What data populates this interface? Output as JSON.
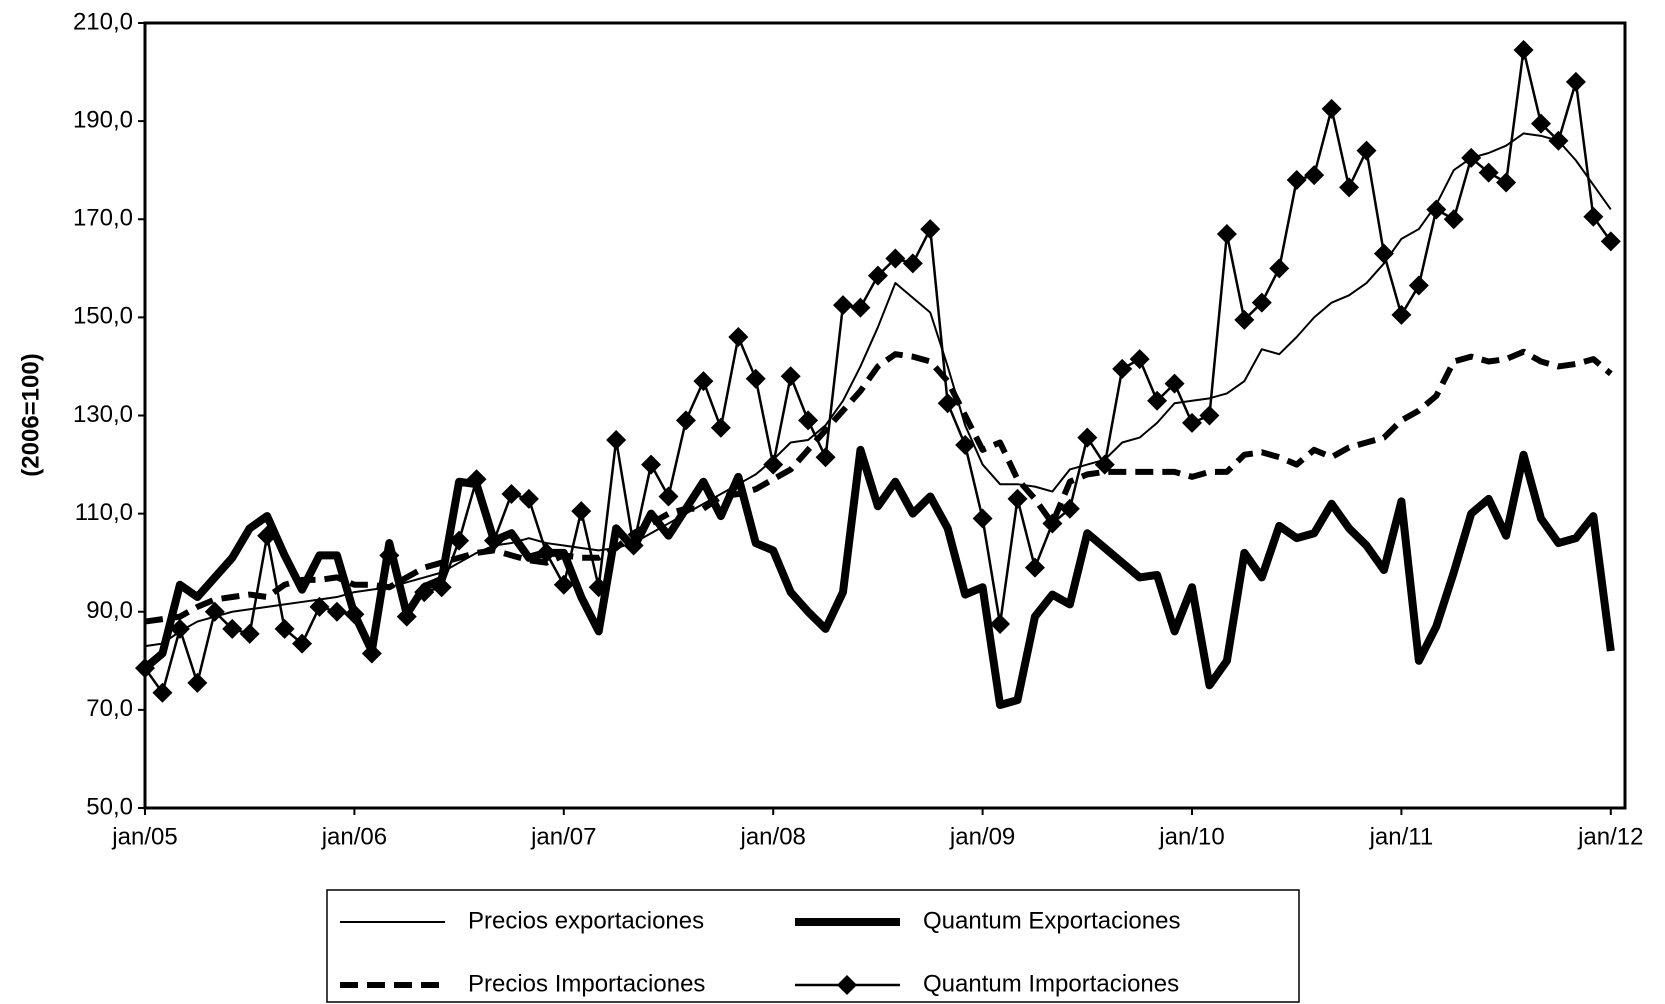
{
  "chart_data": {
    "type": "line",
    "y_label": "(2006=100)",
    "categories": [
      "jan/05",
      null,
      null,
      null,
      null,
      null,
      null,
      null,
      null,
      null,
      null,
      null,
      "jan/06",
      null,
      null,
      null,
      null,
      null,
      null,
      null,
      null,
      null,
      null,
      null,
      "jan/07",
      null,
      null,
      null,
      null,
      null,
      null,
      null,
      null,
      null,
      null,
      null,
      "jan/08",
      null,
      null,
      null,
      null,
      null,
      null,
      null,
      null,
      null,
      null,
      null,
      "jan/09",
      null,
      null,
      null,
      null,
      null,
      null,
      null,
      null,
      null,
      null,
      null,
      "jan/10",
      null,
      null,
      null,
      null,
      null,
      null,
      null,
      null,
      null,
      null,
      null,
      "jan/11",
      null,
      null,
      null,
      null,
      null,
      null,
      null,
      null,
      null,
      null,
      null,
      "jan/12"
    ],
    "ylim": [
      50,
      210
    ],
    "yticks": [
      {
        "value": 50,
        "label": "50,0"
      },
      {
        "value": 70,
        "label": "70,0"
      },
      {
        "value": 90,
        "label": "90,0"
      },
      {
        "value": 110,
        "label": "110,0"
      },
      {
        "value": 130,
        "label": "130,0"
      },
      {
        "value": 150,
        "label": "150,0"
      },
      {
        "value": 170,
        "label": "170,0"
      },
      {
        "value": 190,
        "label": "190,0"
      },
      {
        "value": 210,
        "label": "210,0"
      }
    ],
    "series": [
      {
        "name": "Precios exportaciones",
        "color": "#000000",
        "width": 2,
        "style": "solid",
        "values": [
          83,
          83.5,
          86,
          88,
          89,
          90,
          90.5,
          91,
          91.5,
          92,
          92.5,
          93,
          94,
          94.5,
          95,
          96,
          97,
          98,
          100,
          102,
          103.5,
          104,
          105,
          104,
          103.5,
          103,
          102.5,
          103,
          104,
          106,
          108,
          110,
          112,
          114,
          116,
          118,
          121,
          124.5,
          125,
          128,
          133,
          140,
          148,
          157,
          154,
          151,
          140,
          128,
          120,
          116,
          116,
          115.5,
          114.5,
          119,
          120,
          121,
          124.5,
          125.5,
          128.5,
          132.5,
          133,
          133.5,
          134.5,
          137,
          143.5,
          142.5,
          146,
          150,
          153,
          154.5,
          157,
          161,
          166,
          168,
          173,
          180,
          182.5,
          183.5,
          185,
          187.5,
          187,
          186,
          182,
          177,
          172
        ]
      },
      {
        "name": "Quantum Exportaciones",
        "color": "#000000",
        "width": 8,
        "style": "solid",
        "values": [
          78.5,
          81.5,
          95.5,
          93,
          97,
          101,
          107,
          109.5,
          101.5,
          94.5,
          101.5,
          101.5,
          89.5,
          82,
          104,
          89.5,
          95,
          96.5,
          116.5,
          116,
          104.5,
          106,
          101,
          102,
          102,
          93,
          86,
          107,
          103,
          110,
          105.5,
          111,
          116.5,
          109.5,
          117.5,
          104,
          102.5,
          94,
          90,
          86.5,
          94,
          123,
          111.5,
          116.5,
          110,
          113.5,
          107,
          93.5,
          95,
          71,
          72,
          89,
          93.5,
          91.5,
          106,
          103,
          100,
          97,
          97.5,
          86,
          95,
          75,
          80,
          102,
          97,
          107.5,
          105,
          106,
          112,
          107,
          103.5,
          98.5,
          112.5,
          80,
          87,
          98,
          110,
          113,
          105.5,
          122,
          109,
          104,
          105,
          109.5,
          82
        ]
      },
      {
        "name": "Precios Importaciones",
        "color": "#000000",
        "width": 6,
        "style": "dashed",
        "values": [
          88,
          88.5,
          89,
          91,
          92.5,
          93,
          93.5,
          93,
          95.5,
          96.5,
          96.5,
          97,
          95.5,
          95.5,
          95,
          97,
          99,
          100,
          101,
          102,
          102.5,
          101.5,
          100.5,
          100,
          101.5,
          101,
          101,
          103,
          106,
          108,
          110,
          111,
          111,
          113.5,
          114,
          115,
          117,
          119,
          123,
          127,
          131,
          135,
          140,
          142.5,
          142,
          141,
          137,
          130,
          123,
          124.5,
          117,
          113,
          108,
          116.5,
          118,
          118.5,
          118.5,
          118.5,
          118.5,
          118.5,
          117.5,
          118.5,
          118.5,
          122,
          122.5,
          121.5,
          120,
          123,
          121.5,
          123.5,
          124.5,
          125.5,
          129,
          131,
          134,
          141,
          142,
          141,
          141.5,
          143,
          141,
          140,
          140.5,
          141.5,
          138.5
        ]
      },
      {
        "name": "Quantum Importaciones",
        "color": "#000000",
        "width": 2.5,
        "style": "solid",
        "marker": "diamond",
        "values": [
          78.5,
          73.5,
          86.5,
          75.5,
          90,
          86.5,
          85.5,
          105.5,
          86.5,
          83.5,
          91,
          90,
          89.5,
          81.5,
          101.5,
          89,
          94,
          95,
          104.5,
          117,
          104.5,
          114,
          113,
          102,
          95.5,
          110.5,
          95,
          125,
          103.5,
          120,
          113.5,
          129,
          137,
          127.5,
          146,
          137.5,
          120,
          138,
          129,
          121.5,
          152.5,
          152,
          158.5,
          162,
          161,
          168,
          132.5,
          124,
          109,
          87.5,
          113,
          99,
          108,
          111,
          125.5,
          120,
          139.5,
          141.5,
          133,
          136.5,
          128.5,
          130,
          167,
          149.5,
          153,
          160,
          178,
          179,
          192.5,
          176.5,
          184,
          163,
          150.5,
          156.5,
          172,
          170,
          182.5,
          179.5,
          177.5,
          204.5,
          189.5,
          186,
          198,
          170.5,
          165.5
        ]
      }
    ]
  }
}
